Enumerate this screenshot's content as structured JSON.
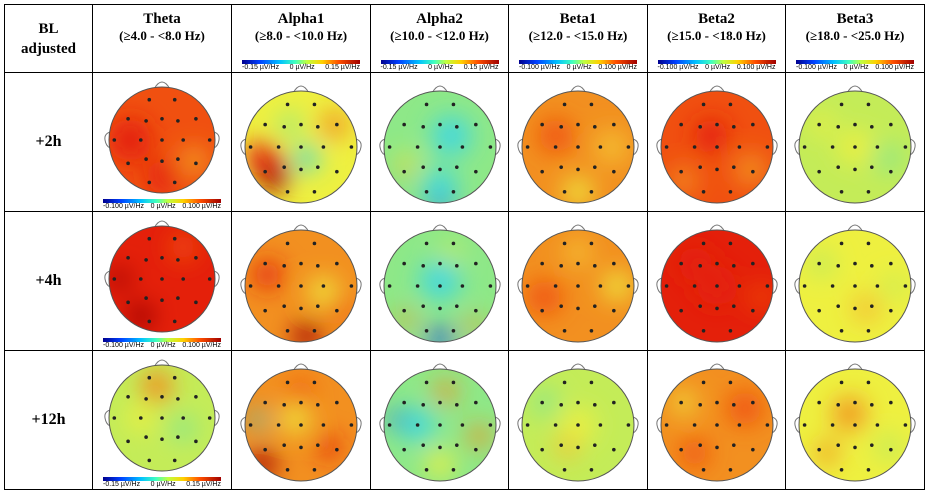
{
  "corner_label": [
    "BL",
    "adjusted"
  ],
  "bands": [
    {
      "name": "Theta",
      "range": "(≥4.0 - <8.0 Hz)"
    },
    {
      "name": "Alpha1",
      "range": "(≥8.0 - <10.0 Hz)"
    },
    {
      "name": "Alpha2",
      "range": "(≥10.0 - <12.0 Hz)"
    },
    {
      "name": "Beta1",
      "range": "(≥12.0 - <15.0 Hz)"
    },
    {
      "name": "Beta2",
      "range": "(≥15.0 - <18.0 Hz)"
    },
    {
      "name": "Beta3",
      "range": "(≥18.0 - <25.0 Hz)"
    }
  ],
  "header_scales": [
    null,
    {
      "min": "-0.15 µV/Hz",
      "mid": "0 µV/Hz",
      "max": "0.15 µV/Hz"
    },
    {
      "min": "-0.15 µV/Hz",
      "mid": "0 µV/Hz",
      "max": "0.15 µV/Hz"
    },
    {
      "min": "-0.100 µV/Hz",
      "mid": "0 µV/Hz",
      "max": "0.100 µV/Hz"
    },
    {
      "min": "-0.100 µV/Hz",
      "mid": "0 µV/Hz",
      "max": "0.100 µV/Hz"
    },
    {
      "min": "-0.100 µV/Hz",
      "mid": "0 µV/Hz",
      "max": "0.100 µV/Hz"
    }
  ],
  "theta_scales": [
    {
      "min": "-0.100 µV/Hz",
      "mid": "0 µV/Hz",
      "max": "0.100 µV/Hz"
    },
    {
      "min": "-0.100 µV/Hz",
      "mid": "0 µV/Hz",
      "max": "0.100 µV/Hz"
    },
    {
      "min": "-0.15 µV/Hz",
      "mid": "0 µV/Hz",
      "max": "0.15 µV/Hz"
    }
  ],
  "timepoints": [
    "+2h",
    "+4h",
    "+12h"
  ],
  "colors": {
    "red": "#e4200a",
    "orange_red": "#f05010",
    "orange": "#f29020",
    "yellow_orange": "#f4c030",
    "yellow": "#eef040",
    "yellow_green": "#c4ec58",
    "green": "#8ee888",
    "cyan": "#40d8e0",
    "blue": "#1040e0",
    "dark_red": "#a00000"
  },
  "maps": [
    [
      {
        "base": "orange_red",
        "blobs": [
          [
            "red",
            0.2,
            0.5,
            0.4
          ],
          [
            "orange",
            0.8,
            0.7,
            0.3
          ],
          [
            "red",
            0.5,
            0.85,
            0.3
          ]
        ]
      },
      {
        "base": "yellow",
        "blobs": [
          [
            "dark_red",
            0.25,
            0.75,
            0.3
          ],
          [
            "red",
            0.15,
            0.6,
            0.3
          ],
          [
            "cyan",
            0.55,
            0.6,
            0.22
          ],
          [
            "orange",
            0.8,
            0.3,
            0.25
          ],
          [
            "green",
            0.4,
            0.3,
            0.2
          ]
        ]
      },
      {
        "base": "green",
        "blobs": [
          [
            "blue",
            0.5,
            0.95,
            0.25
          ],
          [
            "cyan",
            0.6,
            0.4,
            0.35
          ],
          [
            "yellow",
            0.2,
            0.65,
            0.18
          ],
          [
            "orange",
            0.18,
            0.7,
            0.1
          ],
          [
            "cyan",
            0.5,
            0.85,
            0.3
          ]
        ]
      },
      {
        "base": "orange",
        "blobs": [
          [
            "yellow_orange",
            0.8,
            0.5,
            0.3
          ],
          [
            "orange_red",
            0.3,
            0.4,
            0.3
          ],
          [
            "yellow",
            0.5,
            0.9,
            0.25
          ]
        ]
      },
      {
        "base": "orange_red",
        "blobs": [
          [
            "red",
            0.45,
            0.4,
            0.3
          ],
          [
            "orange",
            0.8,
            0.7,
            0.3
          ],
          [
            "orange",
            0.2,
            0.8,
            0.25
          ]
        ]
      },
      {
        "base": "yellow_green",
        "blobs": [
          [
            "yellow",
            0.5,
            0.5,
            0.3
          ],
          [
            "green",
            0.8,
            0.6,
            0.25
          ],
          [
            "yellow",
            0.2,
            0.3,
            0.2
          ]
        ]
      }
    ],
    [
      {
        "base": "red",
        "blobs": [
          [
            "dark_red",
            0.3,
            0.85,
            0.25
          ],
          [
            "orange_red",
            0.7,
            0.2,
            0.25
          ],
          [
            "dark_red",
            0.1,
            0.5,
            0.2
          ]
        ]
      },
      {
        "base": "orange",
        "blobs": [
          [
            "dark_red",
            0.55,
            0.95,
            0.25
          ],
          [
            "red",
            0.2,
            0.4,
            0.25
          ],
          [
            "yellow",
            0.7,
            0.55,
            0.25
          ],
          [
            "orange_red",
            0.85,
            0.7,
            0.2
          ]
        ]
      },
      {
        "base": "green",
        "blobs": [
          [
            "blue",
            0.5,
            0.97,
            0.2
          ],
          [
            "cyan",
            0.5,
            0.45,
            0.35
          ],
          [
            "orange",
            0.2,
            0.8,
            0.15
          ],
          [
            "orange",
            0.8,
            0.85,
            0.15
          ],
          [
            "yellow_green",
            0.6,
            0.2,
            0.2
          ]
        ]
      },
      {
        "base": "orange",
        "blobs": [
          [
            "orange_red",
            0.2,
            0.6,
            0.3
          ],
          [
            "yellow",
            0.85,
            0.5,
            0.25
          ],
          [
            "yellow_orange",
            0.5,
            0.2,
            0.25
          ]
        ]
      },
      {
        "base": "red",
        "blobs": [
          [
            "red",
            0.5,
            0.5,
            0.35
          ],
          [
            "orange_red",
            0.9,
            0.6,
            0.2
          ],
          [
            "red",
            0.3,
            0.3,
            0.3
          ]
        ]
      },
      {
        "base": "yellow",
        "blobs": [
          [
            "yellow_green",
            0.2,
            0.3,
            0.25
          ],
          [
            "yellow_orange",
            0.6,
            0.7,
            0.25
          ],
          [
            "yellow_green",
            0.85,
            0.5,
            0.2
          ]
        ]
      }
    ],
    [
      {
        "base": "yellow_green",
        "blobs": [
          [
            "orange",
            0.45,
            0.2,
            0.3
          ],
          [
            "yellow",
            0.3,
            0.5,
            0.25
          ],
          [
            "green",
            0.7,
            0.6,
            0.25
          ],
          [
            "yellow_green",
            0.5,
            0.85,
            0.2
          ]
        ]
      },
      {
        "base": "orange",
        "blobs": [
          [
            "dark_red",
            0.15,
            0.85,
            0.25
          ],
          [
            "cyan",
            0.12,
            0.45,
            0.15
          ],
          [
            "yellow",
            0.45,
            0.45,
            0.25
          ],
          [
            "red",
            0.75,
            0.7,
            0.2
          ],
          [
            "orange_red",
            0.5,
            0.2,
            0.2
          ]
        ]
      },
      {
        "base": "green",
        "blobs": [
          [
            "blue",
            0.12,
            0.45,
            0.15
          ],
          [
            "cyan",
            0.3,
            0.5,
            0.3
          ],
          [
            "orange",
            0.85,
            0.6,
            0.2
          ],
          [
            "orange",
            0.55,
            0.2,
            0.2
          ],
          [
            "yellow",
            0.5,
            0.85,
            0.25
          ]
        ]
      },
      {
        "base": "yellow_green",
        "blobs": [
          [
            "yellow",
            0.5,
            0.5,
            0.3
          ],
          [
            "green",
            0.2,
            0.3,
            0.25
          ],
          [
            "yellow_orange",
            0.4,
            0.7,
            0.2
          ]
        ]
      },
      {
        "base": "orange",
        "blobs": [
          [
            "orange_red",
            0.75,
            0.35,
            0.3
          ],
          [
            "orange_red",
            0.3,
            0.75,
            0.25
          ],
          [
            "yellow",
            0.2,
            0.3,
            0.2
          ]
        ]
      },
      {
        "base": "yellow",
        "blobs": [
          [
            "orange",
            0.45,
            0.4,
            0.3
          ],
          [
            "yellow_green",
            0.8,
            0.7,
            0.25
          ],
          [
            "orange",
            0.25,
            0.75,
            0.2
          ]
        ]
      }
    ]
  ]
}
